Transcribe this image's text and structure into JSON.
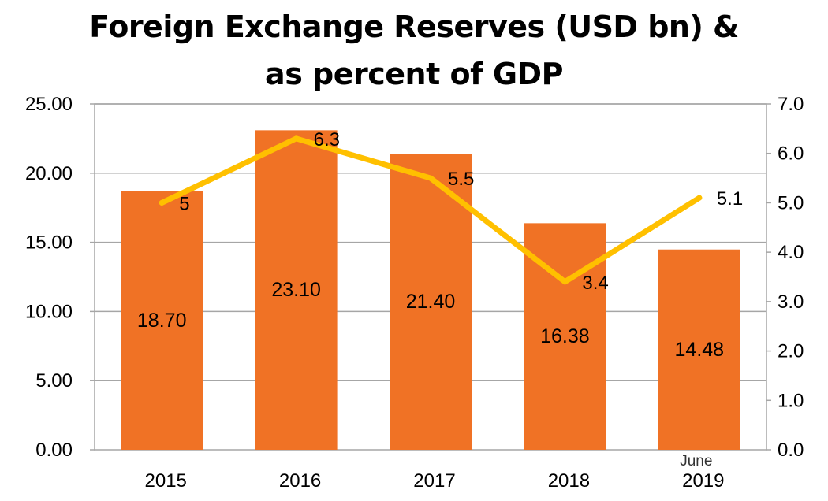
{
  "chart_data": {
    "type": "bar",
    "title_lines": [
      "Foreign Exchange Reserves (USD bn) &",
      "as percent of GDP"
    ],
    "categories": [
      "2015",
      "2016",
      "2017",
      "2018",
      "2019"
    ],
    "category_sublabels": [
      "",
      "",
      "",
      "",
      "June"
    ],
    "series": [
      {
        "type": "bar",
        "axis": "left",
        "values": [
          18.7,
          23.1,
          21.4,
          16.38,
          14.48
        ],
        "labels": [
          "18.70",
          "23.10",
          "21.40",
          "16.38",
          "14.48"
        ],
        "color": "#F07225"
      },
      {
        "type": "line",
        "axis": "right",
        "values": [
          5,
          6.3,
          5.5,
          3.4,
          5.1
        ],
        "labels": [
          "5",
          "6.3",
          "5.5",
          "3.4",
          "5.1"
        ],
        "color": "#FFC000"
      }
    ],
    "y_left": {
      "min": 0,
      "max": 25,
      "step": 5,
      "tick_labels": [
        "0.00",
        "5.00",
        "10.00",
        "15.00",
        "20.00",
        "25.00"
      ]
    },
    "y_right": {
      "min": 0,
      "max": 7,
      "step": 1,
      "tick_labels": [
        "0.0",
        "1.0",
        "2.0",
        "3.0",
        "4.0",
        "5.0",
        "6.0",
        "7.0"
      ]
    },
    "grid": true,
    "legend": "none"
  }
}
